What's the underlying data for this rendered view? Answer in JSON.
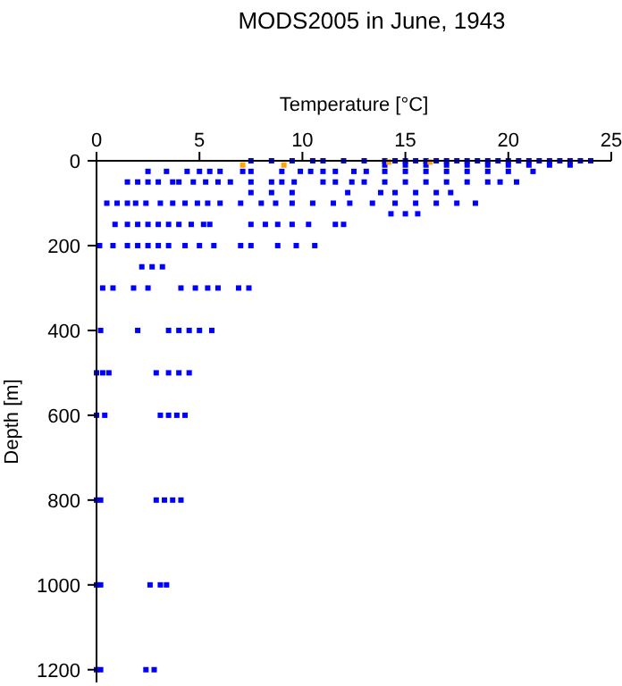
{
  "chart_data": {
    "type": "scatter",
    "title": "MODS2005 in June, 1943",
    "xlabel": "Temperature [°C]",
    "ylabel": "Depth [m]",
    "xlim": [
      0,
      25
    ],
    "xticks": [
      0,
      5,
      10,
      15,
      20,
      25
    ],
    "ylim": [
      1230,
      0
    ],
    "yticks": [
      0,
      200,
      400,
      600,
      800,
      1000,
      1200
    ],
    "grid": false,
    "marker": "square",
    "series": [
      {
        "color": "#0000ff",
        "x": [
          7.5,
          8.5,
          9.5,
          10.5,
          11,
          12,
          13,
          14,
          14.5,
          15,
          15.5,
          16,
          16.5,
          17,
          17.5,
          18,
          18.5,
          19,
          19.5,
          20,
          20.5,
          21,
          21.5,
          22,
          22.5,
          23,
          23.5,
          24,
          14,
          15,
          16,
          17,
          18,
          19,
          20,
          21,
          22,
          23,
          2.5,
          3.4,
          4.4,
          5,
          5.5,
          6,
          7.1,
          7.5,
          9,
          9.9,
          10.4,
          11,
          11.6,
          12.5,
          13.1,
          14,
          15,
          16,
          17,
          18,
          19,
          20,
          21.2,
          1.5,
          2,
          2.5,
          3,
          3.7,
          4,
          4.7,
          5.3,
          5.9,
          6.5,
          7.5,
          8.5,
          9,
          9.6,
          11,
          11.6,
          12.4,
          13,
          14,
          15,
          16,
          17,
          18,
          19,
          19.6,
          20.4,
          7.5,
          8.5,
          9.5,
          12.2,
          13.8,
          14.5,
          15.5,
          16.5,
          17.2,
          0.5,
          1,
          1.5,
          1.9,
          2.4,
          3.1,
          3.7,
          4.3,
          4.9,
          5.4,
          6,
          7,
          8,
          8.7,
          9.5,
          10.5,
          11.5,
          12.3,
          13.4,
          14.5,
          15.5,
          16.5,
          17.5,
          18.4,
          14.3,
          15,
          15.6,
          0.9,
          1.5,
          2,
          2.5,
          3,
          3.5,
          4,
          4.6,
          5.2,
          5.5,
          7.5,
          8.2,
          8.8,
          9.5,
          10.3,
          11.6,
          12,
          0.15,
          0.8,
          1.5,
          2,
          2.5,
          3,
          3.5,
          4.3,
          5,
          5.7,
          7,
          7.5,
          8.8,
          9.7,
          10.6,
          2.2,
          2.7,
          3.2,
          0.3,
          0.8,
          1.8,
          2.5,
          4.1,
          4.8,
          5.4,
          5.9,
          6.9,
          7.4,
          0.2,
          2,
          3.5,
          4,
          4.5,
          5,
          5.6,
          0,
          0.3,
          0.6,
          2.9,
          3.5,
          4,
          4.5,
          0,
          0.4,
          3.1,
          3.5,
          3.9,
          4.3,
          0,
          0.2,
          2.9,
          3.3,
          3.7,
          4.1,
          0,
          0.2,
          2.6,
          3.1,
          3.4,
          0,
          0.2,
          2.4,
          2.8
        ],
        "values": [
          0,
          0,
          0,
          0,
          0,
          0,
          0,
          0,
          0,
          0,
          0,
          0,
          0,
          0,
          0,
          0,
          0,
          0,
          0,
          0,
          0,
          0,
          0,
          0,
          0,
          0,
          0,
          0,
          10,
          10,
          10,
          10,
          10,
          10,
          10,
          10,
          10,
          10,
          25,
          25,
          25,
          25,
          25,
          25,
          25,
          25,
          25,
          25,
          25,
          25,
          25,
          25,
          25,
          25,
          25,
          25,
          25,
          25,
          25,
          25,
          25,
          50,
          50,
          50,
          50,
          50,
          50,
          50,
          50,
          50,
          50,
          50,
          50,
          50,
          50,
          50,
          50,
          50,
          50,
          50,
          50,
          50,
          50,
          50,
          50,
          50,
          50,
          75,
          75,
          75,
          75,
          75,
          75,
          75,
          75,
          75,
          100,
          100,
          100,
          100,
          100,
          100,
          100,
          100,
          100,
          100,
          100,
          100,
          100,
          100,
          100,
          100,
          100,
          100,
          100,
          100,
          100,
          100,
          100,
          100,
          125,
          125,
          125,
          150,
          150,
          150,
          150,
          150,
          150,
          150,
          150,
          150,
          150,
          150,
          150,
          150,
          150,
          150,
          150,
          150,
          200,
          200,
          200,
          200,
          200,
          200,
          200,
          200,
          200,
          200,
          200,
          200,
          200,
          200,
          200,
          250,
          250,
          250,
          300,
          300,
          300,
          300,
          300,
          300,
          300,
          300,
          300,
          300,
          400,
          400,
          400,
          400,
          400,
          400,
          400,
          500,
          500,
          500,
          500,
          500,
          500,
          500,
          600,
          600,
          600,
          600,
          600,
          600,
          800,
          800,
          800,
          800,
          800,
          800,
          1000,
          1000,
          1000,
          1000,
          1000,
          1200,
          1200,
          1200,
          1200
        ]
      },
      {
        "color": "#ffa500",
        "x": [
          7.1,
          9.1,
          14.2,
          16.2
        ],
        "values": [
          10,
          10,
          3,
          3
        ]
      }
    ]
  }
}
